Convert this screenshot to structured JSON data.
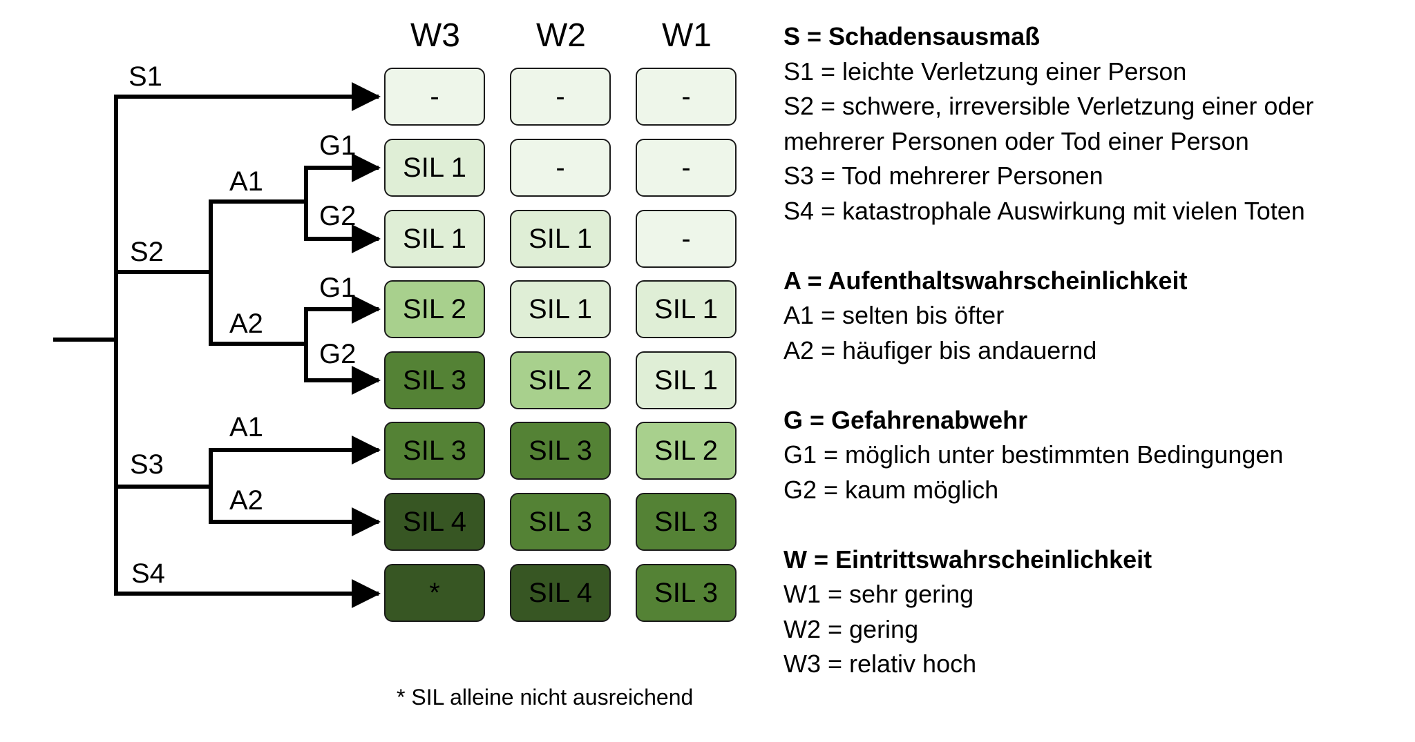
{
  "colors": {
    "lightest": "#eef6ea",
    "light": "#dfeed6",
    "medium": "#a8d08d",
    "dark": "#548235",
    "darkest": "#375623",
    "line": "#000000"
  },
  "column_headers": [
    "W3",
    "W2",
    "W1"
  ],
  "tree_labels": {
    "s1": "S1",
    "s2": "S2",
    "s3": "S3",
    "s4": "S4",
    "s2_a1": "A1",
    "s2_a2": "A2",
    "s2_a1_g1": "G1",
    "s2_a1_g2": "G2",
    "s2_a2_g1": "G1",
    "s2_a2_g2": "G2",
    "s3_a1": "A1",
    "s3_a2": "A2"
  },
  "matrix": [
    {
      "path": "S1",
      "cells": [
        {
          "text": "-",
          "shade": "lightest"
        },
        {
          "text": "-",
          "shade": "lightest"
        },
        {
          "text": "-",
          "shade": "lightest"
        }
      ]
    },
    {
      "path": "S2-A1-G1",
      "cells": [
        {
          "text": "SIL 1",
          "shade": "light"
        },
        {
          "text": "-",
          "shade": "lightest"
        },
        {
          "text": "-",
          "shade": "lightest"
        }
      ]
    },
    {
      "path": "S2-A1-G2",
      "cells": [
        {
          "text": "SIL 1",
          "shade": "light"
        },
        {
          "text": "SIL 1",
          "shade": "light"
        },
        {
          "text": "-",
          "shade": "lightest"
        }
      ]
    },
    {
      "path": "S2-A2-G1",
      "cells": [
        {
          "text": "SIL 2",
          "shade": "medium"
        },
        {
          "text": "SIL 1",
          "shade": "light"
        },
        {
          "text": "SIL 1",
          "shade": "light"
        }
      ]
    },
    {
      "path": "S2-A2-G2",
      "cells": [
        {
          "text": "SIL 3",
          "shade": "dark"
        },
        {
          "text": "SIL 2",
          "shade": "medium"
        },
        {
          "text": "SIL 1",
          "shade": "light"
        }
      ]
    },
    {
      "path": "S3-A1",
      "cells": [
        {
          "text": "SIL 3",
          "shade": "dark"
        },
        {
          "text": "SIL 3",
          "shade": "dark"
        },
        {
          "text": "SIL 2",
          "shade": "medium"
        }
      ]
    },
    {
      "path": "S3-A2",
      "cells": [
        {
          "text": "SIL 4",
          "shade": "darkest"
        },
        {
          "text": "SIL 3",
          "shade": "dark"
        },
        {
          "text": "SIL 3",
          "shade": "dark"
        }
      ]
    },
    {
      "path": "S4",
      "cells": [
        {
          "text": "*",
          "shade": "darkest"
        },
        {
          "text": "SIL 4",
          "shade": "darkest"
        },
        {
          "text": "SIL 3",
          "shade": "dark"
        }
      ]
    }
  ],
  "footnote": "* SIL alleine nicht ausreichend",
  "legend": [
    {
      "title": "S = Schadensausmaß",
      "items": [
        "S1 = leichte Verletzung einer Person",
        "S2 = schwere, irreversible Verletzung einer oder",
        "mehrerer Personen oder Tod einer Person",
        "S3 = Tod mehrerer Personen",
        "S4 = katastrophale Auswirkung mit vielen Toten"
      ]
    },
    {
      "title": "A = Aufenthaltswahrscheinlichkeit",
      "items": [
        "A1 = selten bis öfter",
        "A2 = häufiger bis andauernd"
      ]
    },
    {
      "title": "G = Gefahrenabwehr",
      "items": [
        "G1 = möglich unter bestimmten Bedingungen",
        "G2 = kaum möglich"
      ]
    },
    {
      "title": "W = Eintrittswahrscheinlichkeit",
      "items": [
        "W1 = sehr gering",
        "W2 = gering",
        "W3 = relativ hoch"
      ]
    }
  ]
}
